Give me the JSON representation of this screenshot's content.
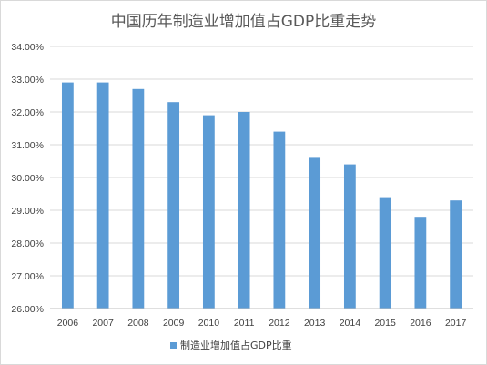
{
  "chart_data": {
    "type": "bar",
    "title": "中国历年制造业增加值占GDP比重走势",
    "xlabel": "",
    "ylabel": "",
    "categories": [
      "2006",
      "2007",
      "2008",
      "2009",
      "2010",
      "2011",
      "2012",
      "2013",
      "2014",
      "2015",
      "2016",
      "2017"
    ],
    "series": [
      {
        "name": "制造业增加值占GDP比重",
        "values": [
          32.9,
          32.9,
          32.7,
          32.3,
          31.9,
          32.0,
          31.4,
          30.6,
          30.4,
          29.4,
          28.8,
          29.3
        ],
        "color": "#5b9bd5"
      }
    ],
    "ylim": [
      26,
      34
    ],
    "yticks": [
      26,
      27,
      28,
      29,
      30,
      31,
      32,
      33,
      34
    ],
    "ytick_labels": [
      "26.00%",
      "27.00%",
      "28.00%",
      "29.00%",
      "30.00%",
      "31.00%",
      "32.00%",
      "33.00%",
      "34.00%"
    ],
    "grid": true,
    "legend_position": "bottom"
  }
}
